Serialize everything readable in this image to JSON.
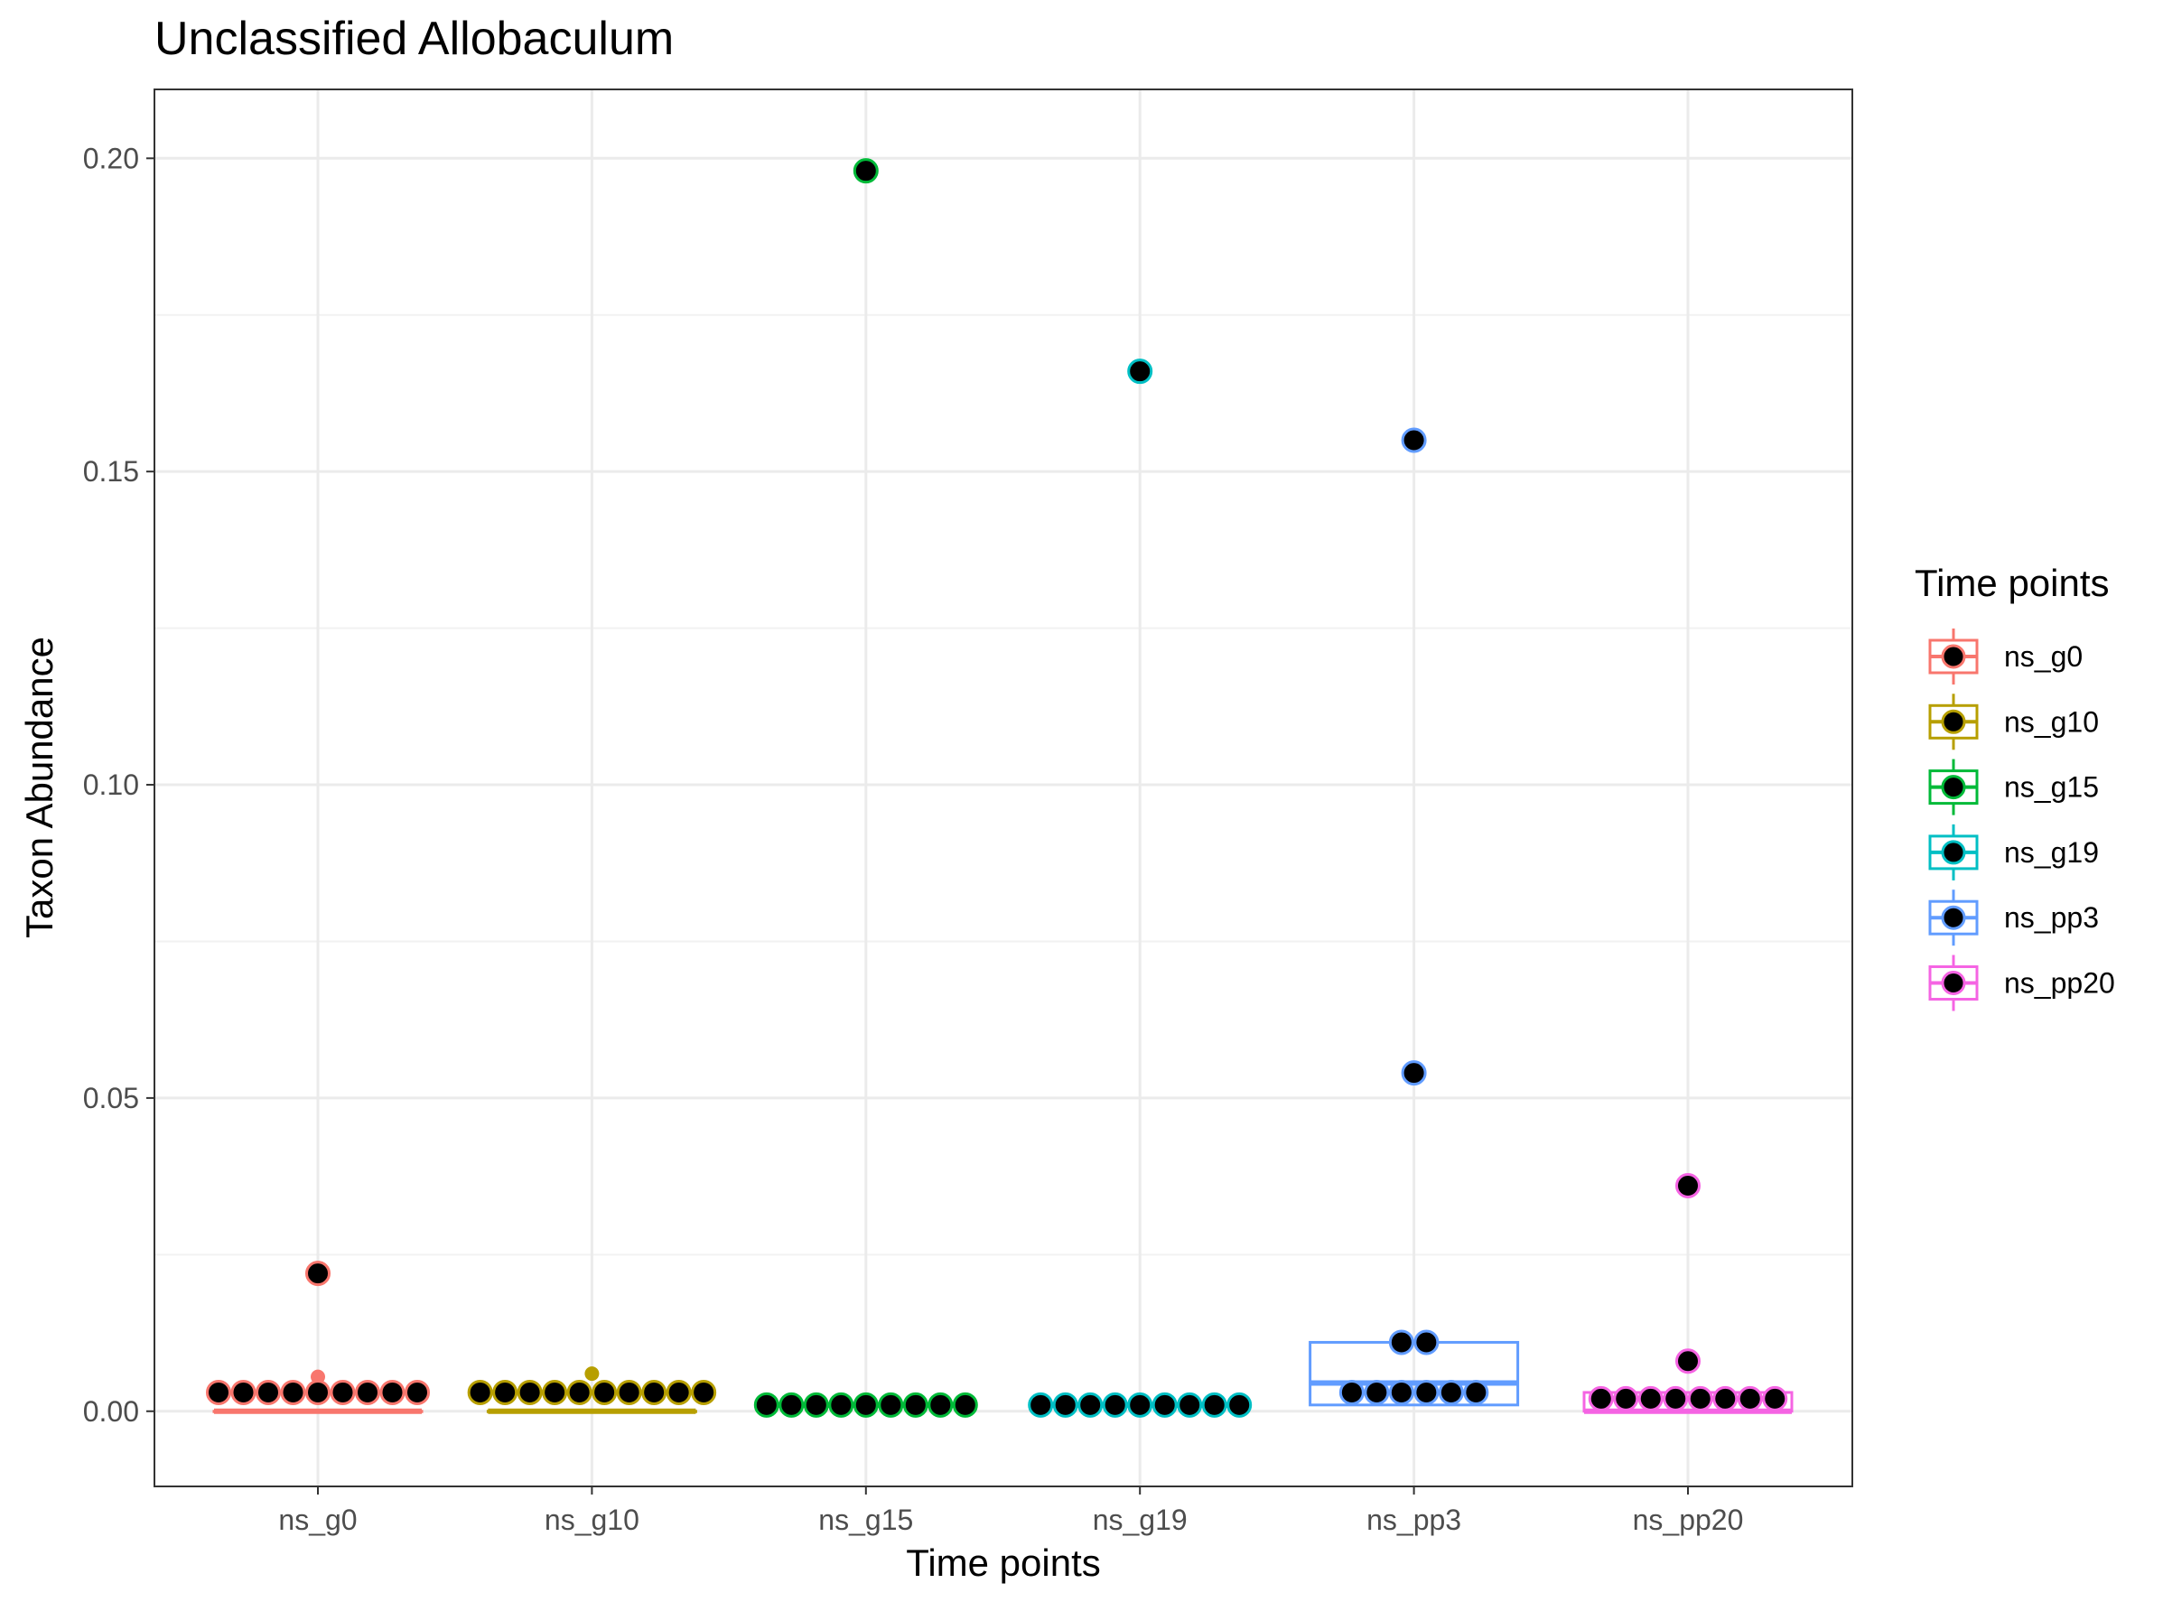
{
  "chart_data": {
    "type": "boxplot",
    "title": "Unclassified  Allobaculum",
    "xlabel": "Time points",
    "ylabel": "Taxon Abundance",
    "ylim": [
      -0.012,
      0.211
    ],
    "yticks": [
      0.0,
      0.05,
      0.1,
      0.15,
      0.2
    ],
    "ytick_labels": [
      "0.00",
      "0.05",
      "0.10",
      "0.15",
      "0.20"
    ],
    "grid": true,
    "legend": {
      "title": "Time points",
      "placement": "right"
    },
    "categories": [
      "ns_g0",
      "ns_g10",
      "ns_g15",
      "ns_g19",
      "ns_pp3",
      "ns_pp20"
    ],
    "colors": [
      "#F8766D",
      "#B79F00",
      "#00BA38",
      "#00BFC4",
      "#619CFF",
      "#F564E3"
    ],
    "point_color": "#000000",
    "series": [
      {
        "name": "ns_g0",
        "box": {
          "min": 0.0,
          "q1": 0.0,
          "median": 0.0,
          "q3": 0.0,
          "max": 0.0
        },
        "outliers_colored": [
          0.0055
        ],
        "points": [
          0.003,
          0.003,
          0.003,
          0.003,
          0.003,
          0.003,
          0.003,
          0.003,
          0.003,
          0.022
        ]
      },
      {
        "name": "ns_g10",
        "box": {
          "min": 0.0,
          "q1": 0.0,
          "median": 0.0,
          "q3": 0.0,
          "max": 0.0
        },
        "outliers_colored": [
          0.006
        ],
        "points": [
          0.003,
          0.003,
          0.003,
          0.003,
          0.003,
          0.003,
          0.003,
          0.003,
          0.003,
          0.003
        ]
      },
      {
        "name": "ns_g15",
        "box": {
          "min": 0.001,
          "q1": 0.001,
          "median": 0.001,
          "q3": 0.001,
          "max": 0.001
        },
        "outliers_colored": [],
        "points": [
          0.001,
          0.001,
          0.001,
          0.001,
          0.001,
          0.001,
          0.001,
          0.001,
          0.001,
          0.198
        ]
      },
      {
        "name": "ns_g19",
        "box": {
          "min": 0.001,
          "q1": 0.001,
          "median": 0.001,
          "q3": 0.001,
          "max": 0.001
        },
        "outliers_colored": [],
        "points": [
          0.001,
          0.001,
          0.001,
          0.001,
          0.001,
          0.001,
          0.001,
          0.001,
          0.001,
          0.166
        ]
      },
      {
        "name": "ns_pp3",
        "box": {
          "min": 0.001,
          "q1": 0.001,
          "median": 0.0045,
          "q3": 0.011,
          "max": 0.011
        },
        "outliers_colored": [],
        "points": [
          0.003,
          0.003,
          0.003,
          0.003,
          0.003,
          0.003,
          0.011,
          0.011,
          0.054,
          0.155
        ]
      },
      {
        "name": "ns_pp20",
        "box": {
          "min": 0.0,
          "q1": 0.0,
          "median": 0.0,
          "q3": 0.003,
          "max": 0.003
        },
        "outliers_colored": [],
        "points": [
          0.002,
          0.002,
          0.002,
          0.002,
          0.002,
          0.002,
          0.002,
          0.002,
          0.008,
          0.036
        ]
      }
    ]
  }
}
